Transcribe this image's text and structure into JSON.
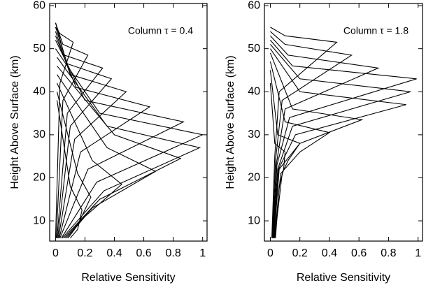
{
  "chart_data": [
    {
      "type": "line",
      "annotation": "Column τ = 0.4",
      "xlabel": "Relative Sensitivity",
      "ylabel": "Height Above Surface (km)",
      "xlim": [
        -0.04,
        1.03
      ],
      "ylim": [
        5.3,
        60.5
      ],
      "xticks": [
        0,
        0.2,
        0.4,
        0.6,
        0.8,
        1
      ],
      "yticks": [
        10,
        20,
        30,
        40,
        50,
        60
      ],
      "series": [
        {
          "color": "#000000",
          "x": [
            0,
            0.03,
            0.12,
            0.03,
            0
          ],
          "values": [
            6,
            42,
            51.5,
            53.5,
            55
          ]
        },
        {
          "color": "#000000",
          "x": [
            0.005,
            0.05,
            0.22,
            0.05,
            0
          ],
          "values": [
            6,
            38,
            48.5,
            51,
            56
          ]
        },
        {
          "color": "#000000",
          "x": [
            0.01,
            0.08,
            0.32,
            0.06,
            0
          ],
          "values": [
            6,
            35,
            45.5,
            48.5,
            56
          ]
        },
        {
          "color": "#000000",
          "x": [
            0.015,
            0.1,
            0.38,
            0.08,
            0
          ],
          "values": [
            6,
            32,
            43,
            46.5,
            55
          ]
        },
        {
          "color": "#000000",
          "x": [
            0.02,
            0.13,
            0.48,
            0.1,
            0
          ],
          "values": [
            6,
            29,
            40,
            44,
            54
          ]
        },
        {
          "color": "#000000",
          "x": [
            0.025,
            0.17,
            0.64,
            0.14,
            0
          ],
          "values": [
            6,
            26,
            36.5,
            41,
            53
          ]
        },
        {
          "color": "#000000",
          "x": [
            0.03,
            0.22,
            0.87,
            0.2,
            0
          ],
          "values": [
            6,
            22,
            33,
            38,
            52
          ]
        },
        {
          "color": "#000000",
          "x": [
            0.04,
            0.28,
            1.0,
            0.3,
            0
          ],
          "values": [
            6,
            19,
            30,
            35,
            50
          ]
        },
        {
          "color": "#000000",
          "x": [
            0.045,
            0.33,
            0.98,
            0.35,
            0.01
          ],
          "values": [
            6,
            17,
            27,
            32,
            48
          ]
        },
        {
          "color": "#000000",
          "x": [
            0.055,
            0.3,
            0.85,
            0.4,
            0.01
          ],
          "values": [
            6,
            15,
            24.5,
            30,
            46
          ]
        },
        {
          "color": "#000000",
          "x": [
            0.065,
            0.25,
            0.68,
            0.35,
            0.01
          ],
          "values": [
            6,
            13,
            21.5,
            27,
            44
          ]
        },
        {
          "color": "#000000",
          "x": [
            0.075,
            0.2,
            0.45,
            0.25,
            0.01
          ],
          "values": [
            6,
            11,
            18.5,
            24,
            42
          ]
        },
        {
          "color": "#000000",
          "x": [
            0.085,
            0.15,
            0.24,
            0.15,
            0.01
          ],
          "values": [
            6,
            9,
            15.5,
            21,
            40
          ]
        },
        {
          "color": "#000000",
          "x": [
            0.1,
            0.15,
            0.18,
            0.1,
            0.01
          ],
          "values": [
            6,
            8,
            12.5,
            18,
            38
          ]
        }
      ]
    },
    {
      "type": "line",
      "annotation": "Column τ = 1.8",
      "xlabel": "Relative Sensitivity",
      "ylabel": "Height Above Surface (km)",
      "xlim": [
        -0.04,
        1.03
      ],
      "ylim": [
        5.3,
        60.5
      ],
      "xticks": [
        0,
        0.2,
        0.4,
        0.6,
        0.8,
        1
      ],
      "yticks": [
        10,
        20,
        30,
        40,
        50,
        60
      ],
      "series": [
        {
          "color": "#000000",
          "x": [
            0.01,
            0.03,
            0.06,
            0.45,
            0.1,
            0
          ],
          "values": [
            6,
            25,
            40,
            51.5,
            53,
            55
          ]
        },
        {
          "color": "#000000",
          "x": [
            0.012,
            0.035,
            0.08,
            0.55,
            0.1,
            0
          ],
          "values": [
            6,
            24,
            38,
            48.5,
            51,
            54
          ]
        },
        {
          "color": "#000000",
          "x": [
            0.015,
            0.04,
            0.1,
            0.73,
            0.12,
            0
          ],
          "values": [
            6,
            23,
            36,
            45.5,
            48.5,
            53
          ]
        },
        {
          "color": "#000000",
          "x": [
            0.018,
            0.045,
            0.13,
            0.99,
            0.15,
            0
          ],
          "values": [
            6,
            23,
            34,
            43,
            46,
            52
          ]
        },
        {
          "color": "#000000",
          "x": [
            0.02,
            0.05,
            0.15,
            0.95,
            0.2,
            0
          ],
          "values": [
            6,
            22,
            32,
            40,
            43,
            51
          ]
        },
        {
          "color": "#000000",
          "x": [
            0.022,
            0.055,
            0.17,
            0.92,
            0.2,
            0
          ],
          "values": [
            6,
            22,
            30,
            37,
            40,
            50
          ]
        },
        {
          "color": "#000000",
          "x": [
            0.025,
            0.06,
            0.2,
            0.62,
            0.15,
            0
          ],
          "values": [
            6,
            22,
            28,
            33.5,
            36,
            49
          ]
        },
        {
          "color": "#000000",
          "x": [
            0.028,
            0.07,
            0.2,
            0.4,
            0.1,
            0
          ],
          "values": [
            6,
            21,
            26,
            30.5,
            33,
            47
          ]
        },
        {
          "color": "#000000",
          "x": [
            0.03,
            0.08,
            0.12,
            0.2,
            0.05,
            0
          ],
          "values": [
            6,
            21,
            24,
            28,
            30,
            45
          ]
        },
        {
          "color": "#000000",
          "x": [
            0.035,
            0.06,
            0.09,
            0.1,
            0.03,
            0
          ],
          "values": [
            6,
            18,
            22,
            26,
            28,
            42
          ]
        }
      ]
    }
  ]
}
